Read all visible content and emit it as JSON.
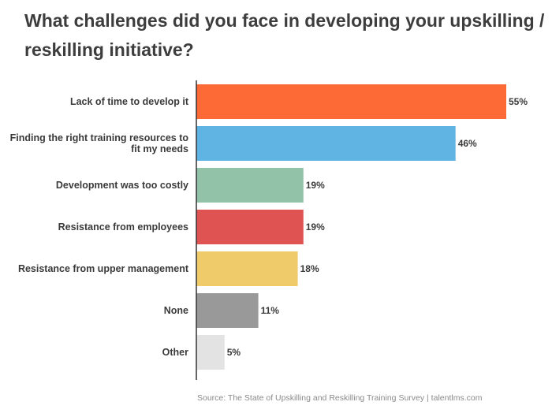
{
  "chart_data": {
    "type": "bar",
    "orientation": "horizontal",
    "title": "What challenges did you face in developing your upskilling / reskilling initiative?",
    "source": "Source: The State of Upskilling and Reskilling Training Survey  |  talentlms.com",
    "value_suffix": "%",
    "xlim": [
      0,
      55
    ],
    "grid": false,
    "categories": [
      [
        "Lack of time to develop it"
      ],
      [
        "Finding the right training resources to",
        "fit my needs"
      ],
      [
        "Development was too costly"
      ],
      [
        "Resistance from employees"
      ],
      [
        "Resistance from upper management"
      ],
      [
        "None"
      ],
      [
        "Other"
      ]
    ],
    "values": [
      55,
      46,
      19,
      19,
      18,
      11,
      5
    ],
    "colors": [
      "#fe6a35",
      "#5fb4e4",
      "#92c3a8",
      "#df5353",
      "#f0cb6a",
      "#999999",
      "#e3e3e3"
    ]
  }
}
